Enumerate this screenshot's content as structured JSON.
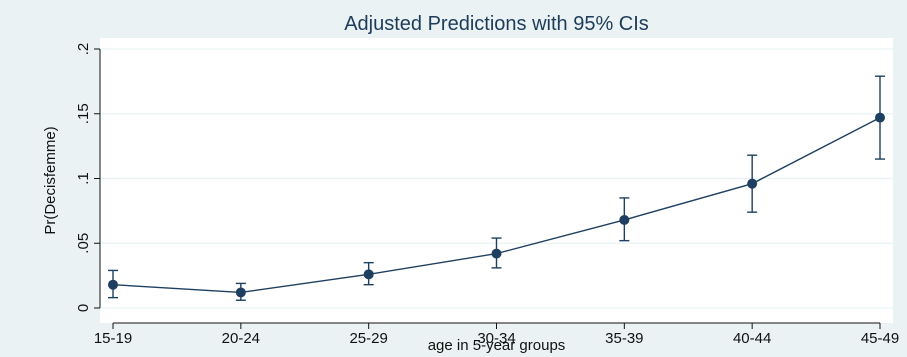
{
  "chart_data": {
    "type": "line",
    "title": "Adjusted Predictions with 95% CIs",
    "xlabel": "age in 5-year groups",
    "ylabel": "Pr(Decisfemme)",
    "categories": [
      "15-19",
      "20-24",
      "25-29",
      "30-34",
      "35-39",
      "40-44",
      "45-49"
    ],
    "series": [
      {
        "values": [
          0.018,
          0.012,
          0.026,
          0.042,
          0.068,
          0.096,
          0.147
        ],
        "ci_lower": [
          0.008,
          0.006,
          0.018,
          0.031,
          0.052,
          0.074,
          0.115
        ],
        "ci_upper": [
          0.029,
          0.019,
          0.035,
          0.054,
          0.085,
          0.118,
          0.179
        ]
      }
    ],
    "y_ticks": [
      0,
      0.05,
      0.1,
      0.15,
      0.2
    ],
    "y_tick_labels": [
      "0",
      ".05",
      ".1",
      ".15",
      ".2"
    ],
    "ylim": [
      0,
      0.2
    ],
    "grid": true,
    "colors": {
      "background": "#eaf2f3",
      "plot_area": "#ffffff",
      "series": "#1f3f60",
      "grid": "#eaf2f3",
      "title": "#1e3b5a"
    }
  }
}
